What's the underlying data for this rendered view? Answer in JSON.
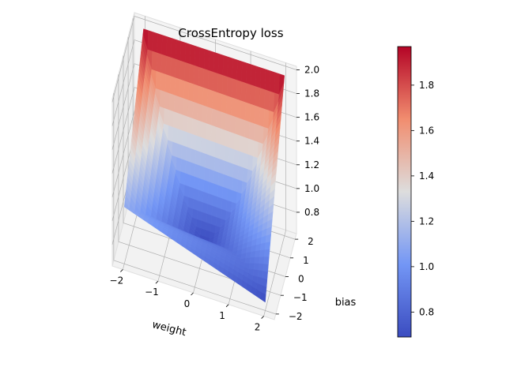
{
  "chart_data": {
    "type": "surface",
    "title": "CrossEntropy loss",
    "xlabel": "weight",
    "ylabel": "bias",
    "zlabel": "",
    "x_ticks": [
      "−2",
      "−1",
      "0",
      "1",
      "2"
    ],
    "y_ticks": [
      "−2",
      "−1",
      "0",
      "1",
      "2"
    ],
    "z_ticks": [
      "0.8",
      "1.0",
      "1.2",
      "1.4",
      "1.6",
      "1.8",
      "2.0"
    ],
    "xlim": [
      -2.3,
      2.3
    ],
    "ylim": [
      -2.3,
      2.3
    ],
    "zlim": [
      0.62,
      2.03
    ],
    "colormap": "coolwarm",
    "colorbar": {
      "ticks": [
        "0.8",
        "1.0",
        "1.2",
        "1.4",
        "1.6",
        "1.8"
      ],
      "range": [
        0.69,
        1.97
      ]
    },
    "surface_corners": [
      {
        "weight": -2,
        "bias": -2,
        "loss": 1.1
      },
      {
        "weight": -2,
        "bias": 2,
        "loss": 1.97
      },
      {
        "weight": 2,
        "bias": -2,
        "loss": 0.69
      },
      {
        "weight": 2,
        "bias": 2,
        "loss": 1.97
      }
    ],
    "surface_center": {
      "weight": 0,
      "bias": 0,
      "loss": 0.69
    },
    "grid": true
  },
  "colors": {
    "pane": "#f2f2f2",
    "grid": "#b0b0b0",
    "cmap_low": "#3b4cc0",
    "cmap_mid": "#dddddd",
    "cmap_high": "#b40426"
  }
}
